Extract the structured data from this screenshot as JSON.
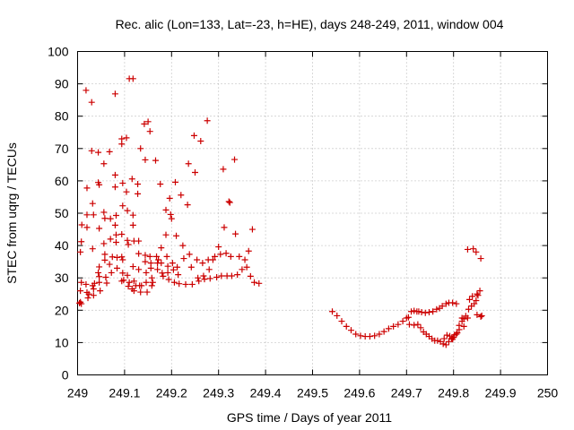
{
  "chart_data": {
    "type": "scatter",
    "title": "Rec. alic (Lon=133, Lat=-23, h=HE), days 248-249, 2011, window 004",
    "xlabel": "GPS time / Days of year 2011",
    "ylabel": "STEC from uqrg / TECUs",
    "xlim": [
      249,
      250
    ],
    "ylim": [
      0,
      100
    ],
    "x_ticks": [
      249,
      249.1,
      249.2,
      249.3,
      249.4,
      249.5,
      249.6,
      249.7,
      249.8,
      249.9,
      250
    ],
    "x_tick_labels": [
      "249",
      "249.1",
      "249.2",
      "249.3",
      "249.4",
      "249.5",
      "249.6",
      "249.7",
      "249.8",
      "249.9",
      "250"
    ],
    "y_ticks": [
      0,
      10,
      20,
      30,
      40,
      50,
      60,
      70,
      80,
      90,
      100
    ],
    "y_tick_labels": [
      "0",
      "10",
      "20",
      "30",
      "40",
      "50",
      "60",
      "70",
      "80",
      "90",
      "100"
    ],
    "grid": true,
    "marker": "plus",
    "color": "#cc0000",
    "series": [
      {
        "points": [
          [
            249.004,
            22.2
          ],
          [
            249.006,
            22.5
          ],
          [
            249.008,
            22.0
          ],
          [
            249.006,
            26.0
          ],
          [
            249.008,
            28.6
          ],
          [
            249.006,
            38.0
          ],
          [
            249.008,
            41.2
          ],
          [
            249.009,
            46.4
          ],
          [
            249.018,
            88.0
          ],
          [
            249.02,
            57.8
          ],
          [
            249.02,
            49.5
          ],
          [
            249.02,
            45.6
          ],
          [
            249.018,
            28.0
          ],
          [
            249.02,
            25.5
          ],
          [
            249.022,
            23.8
          ],
          [
            249.024,
            25.0
          ],
          [
            249.03,
            84.3
          ],
          [
            249.03,
            69.3
          ],
          [
            249.032,
            53.0
          ],
          [
            249.034,
            49.5
          ],
          [
            249.032,
            39.0
          ],
          [
            249.032,
            27.6
          ],
          [
            249.034,
            26.6
          ],
          [
            249.034,
            24.6
          ],
          [
            249.036,
            28.3
          ],
          [
            249.044,
            68.8
          ],
          [
            249.044,
            59.5
          ],
          [
            249.046,
            58.8
          ],
          [
            249.046,
            45.3
          ],
          [
            249.044,
            31.6
          ],
          [
            249.046,
            30.4
          ],
          [
            249.046,
            28.6
          ],
          [
            249.048,
            26.0
          ],
          [
            249.046,
            33.4
          ],
          [
            249.056,
            65.3
          ],
          [
            249.056,
            50.3
          ],
          [
            249.058,
            48.4
          ],
          [
            249.056,
            40.6
          ],
          [
            249.058,
            37.3
          ],
          [
            249.058,
            35.5
          ],
          [
            249.06,
            30.2
          ],
          [
            249.062,
            28.4
          ],
          [
            249.068,
            69.0
          ],
          [
            249.07,
            48.3
          ],
          [
            249.07,
            42.0
          ],
          [
            249.068,
            34.2
          ],
          [
            249.072,
            31.6
          ],
          [
            249.074,
            36.5
          ],
          [
            249.08,
            86.9
          ],
          [
            249.08,
            61.8
          ],
          [
            249.08,
            58.1
          ],
          [
            249.082,
            49.3
          ],
          [
            249.08,
            46.3
          ],
          [
            249.082,
            43.3
          ],
          [
            249.082,
            41.0
          ],
          [
            249.084,
            36.3
          ],
          [
            249.084,
            33.0
          ],
          [
            249.094,
            73.0
          ],
          [
            249.094,
            71.4
          ],
          [
            249.096,
            59.3
          ],
          [
            249.096,
            52.3
          ],
          [
            249.094,
            43.5
          ],
          [
            249.094,
            36.5
          ],
          [
            249.096,
            35.6
          ],
          [
            249.096,
            31.5
          ],
          [
            249.094,
            29.0
          ],
          [
            249.098,
            29.3
          ],
          [
            249.104,
            73.3
          ],
          [
            249.104,
            56.6
          ],
          [
            249.106,
            50.8
          ],
          [
            249.106,
            41.6
          ],
          [
            249.108,
            40.3
          ],
          [
            249.106,
            30.8
          ],
          [
            249.108,
            27.4
          ],
          [
            249.11,
            28.6
          ],
          [
            249.11,
            91.6
          ],
          [
            249.118,
            91.6
          ],
          [
            249.116,
            60.6
          ],
          [
            249.118,
            49.4
          ],
          [
            249.118,
            46.3
          ],
          [
            249.12,
            41.4
          ],
          [
            249.118,
            33.5
          ],
          [
            249.12,
            29.0
          ],
          [
            249.116,
            26.6
          ],
          [
            249.12,
            26.0
          ],
          [
            249.124,
            27.6
          ],
          [
            249.128,
            59.0
          ],
          [
            249.128,
            56.0
          ],
          [
            249.13,
            41.4
          ],
          [
            249.13,
            37.5
          ],
          [
            249.13,
            32.6
          ],
          [
            249.132,
            27.6
          ],
          [
            249.134,
            25.6
          ],
          [
            249.136,
            27.6
          ],
          [
            249.134,
            70.0
          ],
          [
            249.142,
            77.6
          ],
          [
            249.144,
            66.5
          ],
          [
            249.144,
            37.0
          ],
          [
            249.144,
            35.0
          ],
          [
            249.146,
            31.6
          ],
          [
            249.146,
            28.6
          ],
          [
            249.148,
            25.6
          ],
          [
            249.15,
            78.3
          ],
          [
            249.154,
            75.3
          ],
          [
            249.154,
            36.6
          ],
          [
            249.156,
            34.6
          ],
          [
            249.156,
            33.0
          ],
          [
            249.158,
            30.0
          ],
          [
            249.158,
            27.6
          ],
          [
            249.16,
            28.6
          ],
          [
            249.166,
            66.3
          ],
          [
            249.168,
            36.6
          ],
          [
            249.17,
            34.6
          ],
          [
            249.17,
            32.6
          ],
          [
            249.172,
            35.6
          ],
          [
            249.176,
            59.0
          ],
          [
            249.178,
            39.3
          ],
          [
            249.178,
            34.6
          ],
          [
            249.18,
            31.5
          ],
          [
            249.182,
            30.5
          ],
          [
            249.188,
            51.0
          ],
          [
            249.188,
            43.3
          ],
          [
            249.19,
            36.6
          ],
          [
            249.192,
            33.6
          ],
          [
            249.192,
            31.6
          ],
          [
            249.194,
            29.5
          ],
          [
            249.196,
            54.6
          ],
          [
            249.198,
            49.6
          ],
          [
            249.2,
            48.3
          ],
          [
            249.202,
            34.6
          ],
          [
            249.204,
            32.5
          ],
          [
            249.206,
            28.6
          ],
          [
            249.208,
            59.6
          ],
          [
            249.21,
            43.0
          ],
          [
            249.212,
            33.3
          ],
          [
            249.214,
            31.0
          ],
          [
            249.216,
            28.2
          ],
          [
            249.22,
            55.6
          ],
          [
            249.224,
            40.0
          ],
          [
            249.226,
            36.0
          ],
          [
            249.23,
            28.0
          ],
          [
            249.234,
            52.6
          ],
          [
            249.236,
            65.3
          ],
          [
            249.238,
            37.3
          ],
          [
            249.242,
            33.3
          ],
          [
            249.244,
            28.0
          ],
          [
            249.248,
            74.0
          ],
          [
            249.25,
            62.6
          ],
          [
            249.254,
            35.6
          ],
          [
            249.256,
            30.0
          ],
          [
            249.258,
            29.0
          ],
          [
            249.262,
            72.3
          ],
          [
            249.266,
            34.6
          ],
          [
            249.268,
            30.6
          ],
          [
            249.27,
            29.6
          ],
          [
            249.276,
            78.6
          ],
          [
            249.278,
            35.6
          ],
          [
            249.28,
            32.6
          ],
          [
            249.282,
            29.8
          ],
          [
            249.288,
            35.6
          ],
          [
            249.292,
            36.6
          ],
          [
            249.296,
            30.2
          ],
          [
            249.3,
            39.6
          ],
          [
            249.304,
            37.3
          ],
          [
            249.306,
            30.6
          ],
          [
            249.31,
            63.6
          ],
          [
            249.312,
            45.6
          ],
          [
            249.316,
            37.6
          ],
          [
            249.318,
            30.6
          ],
          [
            249.322,
            53.6
          ],
          [
            249.324,
            53.3
          ],
          [
            249.326,
            36.6
          ],
          [
            249.328,
            30.6
          ],
          [
            249.334,
            66.6
          ],
          [
            249.336,
            43.6
          ],
          [
            249.34,
            31.0
          ],
          [
            249.344,
            36.6
          ],
          [
            249.35,
            32.6
          ],
          [
            249.356,
            35.6
          ],
          [
            249.36,
            33.3
          ],
          [
            249.364,
            38.3
          ],
          [
            249.368,
            30.5
          ],
          [
            249.372,
            45.0
          ],
          [
            249.376,
            28.6
          ],
          [
            249.386,
            28.3
          ],
          [
            249.542,
            19.6
          ],
          [
            249.552,
            18.3
          ],
          [
            249.562,
            16.6
          ],
          [
            249.572,
            15.0
          ],
          [
            249.582,
            13.8
          ],
          [
            249.592,
            12.6
          ],
          [
            249.602,
            12.1
          ],
          [
            249.612,
            11.9
          ],
          [
            249.622,
            11.9
          ],
          [
            249.632,
            12.1
          ],
          [
            249.642,
            12.6
          ],
          [
            249.652,
            13.4
          ],
          [
            249.662,
            14.3
          ],
          [
            249.672,
            15.0
          ],
          [
            249.682,
            15.6
          ],
          [
            249.692,
            16.6
          ],
          [
            249.7,
            17.6
          ],
          [
            249.704,
            17.8
          ],
          [
            249.71,
            19.6
          ],
          [
            249.716,
            19.8
          ],
          [
            249.722,
            19.6
          ],
          [
            249.726,
            19.6
          ],
          [
            249.706,
            15.6
          ],
          [
            249.716,
            15.4
          ],
          [
            249.724,
            15.6
          ],
          [
            249.73,
            14.6
          ],
          [
            249.736,
            13.3
          ],
          [
            249.742,
            12.6
          ],
          [
            249.748,
            11.9
          ],
          [
            249.754,
            11.2
          ],
          [
            249.76,
            10.6
          ],
          [
            249.766,
            10.6
          ],
          [
            249.772,
            10.3
          ],
          [
            249.732,
            19.4
          ],
          [
            249.74,
            19.2
          ],
          [
            249.748,
            19.4
          ],
          [
            249.756,
            19.6
          ],
          [
            249.764,
            20.3
          ],
          [
            249.77,
            20.6
          ],
          [
            249.776,
            21.3
          ],
          [
            249.784,
            22.0
          ],
          [
            249.79,
            22.3
          ],
          [
            249.798,
            22.3
          ],
          [
            249.806,
            22.0
          ],
          [
            249.778,
            9.6
          ],
          [
            249.784,
            9.3
          ],
          [
            249.79,
            10.3
          ],
          [
            249.796,
            11.3
          ],
          [
            249.8,
            11.6
          ],
          [
            249.806,
            12.6
          ],
          [
            249.78,
            11.2
          ],
          [
            249.786,
            12.3
          ],
          [
            249.792,
            12.0
          ],
          [
            249.798,
            11.0
          ],
          [
            249.802,
            12.4
          ],
          [
            249.808,
            13.0
          ],
          [
            249.812,
            14.0
          ],
          [
            249.812,
            15.3
          ],
          [
            249.818,
            16.6
          ],
          [
            249.822,
            17.3
          ],
          [
            249.826,
            18.2
          ],
          [
            249.832,
            20.3
          ],
          [
            249.838,
            21.3
          ],
          [
            249.844,
            22.0
          ],
          [
            249.85,
            25.0
          ],
          [
            249.856,
            26.0
          ],
          [
            249.818,
            17.6
          ],
          [
            249.822,
            15.0
          ],
          [
            249.83,
            17.6
          ],
          [
            249.834,
            23.3
          ],
          [
            249.84,
            24.3
          ],
          [
            249.848,
            23.0
          ],
          [
            249.852,
            24.6
          ],
          [
            249.83,
            38.8
          ],
          [
            249.842,
            39.0
          ],
          [
            249.848,
            38.0
          ],
          [
            249.858,
            36.0
          ],
          [
            249.85,
            18.6
          ],
          [
            249.858,
            18.0
          ],
          [
            249.86,
            18.3
          ]
        ]
      }
    ]
  }
}
